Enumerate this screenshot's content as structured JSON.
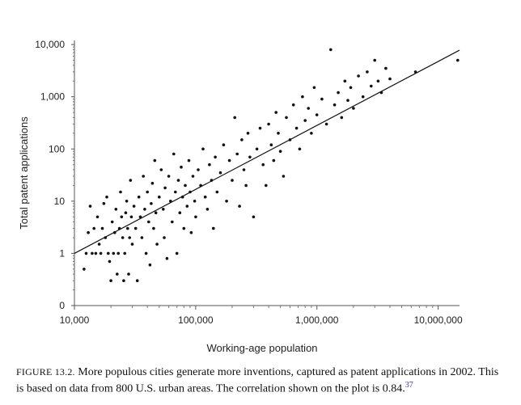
{
  "chart_data": {
    "type": "scatter",
    "xlabel": "Working-age population",
    "ylabel": "Total patent applications",
    "x_scale": "log",
    "y_scale": "log",
    "xlim": [
      10000,
      15000000
    ],
    "ylim": [
      0.1,
      12000
    ],
    "x_ticks": [
      {
        "value": 10000,
        "label": "10,000"
      },
      {
        "value": 100000,
        "label": "100,000"
      },
      {
        "value": 1000000,
        "label": "1,000,000"
      },
      {
        "value": 10000000,
        "label": "10,000,000"
      }
    ],
    "y_ticks": [
      {
        "value": 0.1,
        "label": "0"
      },
      {
        "value": 1,
        "label": "1"
      },
      {
        "value": 10,
        "label": "10"
      },
      {
        "value": 100,
        "label": "100"
      },
      {
        "value": 1000,
        "label": "1,000"
      },
      {
        "value": 10000,
        "label": "10,000"
      }
    ],
    "grid": false,
    "legend": "none",
    "point_color": "#111111",
    "trendline": {
      "x": [
        10000,
        15000000
      ],
      "y": [
        1.0,
        7800
      ]
    },
    "points": [
      [
        12000,
        0.5
      ],
      [
        12500,
        1
      ],
      [
        13000,
        2.5
      ],
      [
        13500,
        8
      ],
      [
        14000,
        1
      ],
      [
        14500,
        3
      ],
      [
        15000,
        1
      ],
      [
        15500,
        5
      ],
      [
        16000,
        1.5
      ],
      [
        16500,
        1
      ],
      [
        17000,
        3
      ],
      [
        17500,
        9
      ],
      [
        18000,
        2
      ],
      [
        18500,
        12
      ],
      [
        19000,
        1
      ],
      [
        19500,
        0.7
      ],
      [
        20000,
        0.3
      ],
      [
        20500,
        4
      ],
      [
        21000,
        1
      ],
      [
        21500,
        2.5
      ],
      [
        22000,
        7
      ],
      [
        22500,
        0.4
      ],
      [
        23000,
        1
      ],
      [
        23500,
        3
      ],
      [
        24000,
        15
      ],
      [
        24500,
        5
      ],
      [
        25000,
        2
      ],
      [
        25500,
        0.3
      ],
      [
        26000,
        1
      ],
      [
        26500,
        6
      ],
      [
        27000,
        10
      ],
      [
        27500,
        3
      ],
      [
        28000,
        0.4
      ],
      [
        28500,
        2
      ],
      [
        29000,
        25
      ],
      [
        29500,
        5
      ],
      [
        30000,
        1.5
      ],
      [
        31000,
        8
      ],
      [
        32000,
        3
      ],
      [
        33000,
        0.3
      ],
      [
        34000,
        12
      ],
      [
        35000,
        5
      ],
      [
        36000,
        2
      ],
      [
        37000,
        30
      ],
      [
        38000,
        7
      ],
      [
        39000,
        1
      ],
      [
        40000,
        15
      ],
      [
        41000,
        4
      ],
      [
        42000,
        0.6
      ],
      [
        43000,
        9
      ],
      [
        44000,
        22
      ],
      [
        45000,
        3
      ],
      [
        46000,
        60
      ],
      [
        47000,
        6
      ],
      [
        48000,
        1.5
      ],
      [
        50000,
        12
      ],
      [
        52000,
        40
      ],
      [
        54000,
        7
      ],
      [
        55000,
        2
      ],
      [
        56000,
        18
      ],
      [
        58000,
        0.8
      ],
      [
        60000,
        30
      ],
      [
        62000,
        10
      ],
      [
        64000,
        4
      ],
      [
        66000,
        80
      ],
      [
        68000,
        15
      ],
      [
        70000,
        1
      ],
      [
        72000,
        25
      ],
      [
        74000,
        6
      ],
      [
        76000,
        45
      ],
      [
        78000,
        12
      ],
      [
        80000,
        3
      ],
      [
        82000,
        20
      ],
      [
        85000,
        8
      ],
      [
        88000,
        60
      ],
      [
        90000,
        15
      ],
      [
        92000,
        2.5
      ],
      [
        95000,
        30
      ],
      [
        98000,
        10
      ],
      [
        100000,
        5
      ],
      [
        105000,
        40
      ],
      [
        110000,
        20
      ],
      [
        115000,
        100
      ],
      [
        120000,
        12
      ],
      [
        125000,
        7
      ],
      [
        130000,
        50
      ],
      [
        135000,
        25
      ],
      [
        140000,
        3
      ],
      [
        145000,
        70
      ],
      [
        150000,
        15
      ],
      [
        160000,
        35
      ],
      [
        170000,
        120
      ],
      [
        180000,
        10
      ],
      [
        190000,
        60
      ],
      [
        200000,
        25
      ],
      [
        210000,
        400
      ],
      [
        220000,
        80
      ],
      [
        230000,
        8
      ],
      [
        240000,
        150
      ],
      [
        250000,
        40
      ],
      [
        260000,
        20
      ],
      [
        270000,
        200
      ],
      [
        280000,
        70
      ],
      [
        300000,
        5
      ],
      [
        320000,
        100
      ],
      [
        340000,
        250
      ],
      [
        360000,
        50
      ],
      [
        380000,
        20
      ],
      [
        400000,
        300
      ],
      [
        420000,
        120
      ],
      [
        440000,
        60
      ],
      [
        460000,
        500
      ],
      [
        480000,
        200
      ],
      [
        500000,
        90
      ],
      [
        530000,
        30
      ],
      [
        560000,
        400
      ],
      [
        600000,
        150
      ],
      [
        640000,
        700
      ],
      [
        680000,
        250
      ],
      [
        720000,
        100
      ],
      [
        760000,
        1000
      ],
      [
        800000,
        350
      ],
      [
        850000,
        600
      ],
      [
        900000,
        200
      ],
      [
        950000,
        1500
      ],
      [
        1000000,
        450
      ],
      [
        1100000,
        900
      ],
      [
        1200000,
        300
      ],
      [
        1300000,
        8000
      ],
      [
        1400000,
        700
      ],
      [
        1500000,
        1200
      ],
      [
        1600000,
        400
      ],
      [
        1700000,
        2000
      ],
      [
        1800000,
        850
      ],
      [
        1900000,
        1500
      ],
      [
        2000000,
        600
      ],
      [
        2200000,
        2500
      ],
      [
        2400000,
        1000
      ],
      [
        2600000,
        3000
      ],
      [
        2800000,
        1600
      ],
      [
        3000000,
        5000
      ],
      [
        3200000,
        2000
      ],
      [
        3400000,
        1200
      ],
      [
        3700000,
        3500
      ],
      [
        4000000,
        2200
      ],
      [
        6500000,
        3000
      ],
      [
        14500000,
        5000
      ]
    ]
  },
  "caption": {
    "figure_label": "FIGURE 13.2.",
    "text": " More populous cities generate more inventions, captured as patent applications in 2002. This is based on data from 800 U.S. urban areas. The correlation shown on the plot is 0.84.",
    "footnote": "37"
  }
}
